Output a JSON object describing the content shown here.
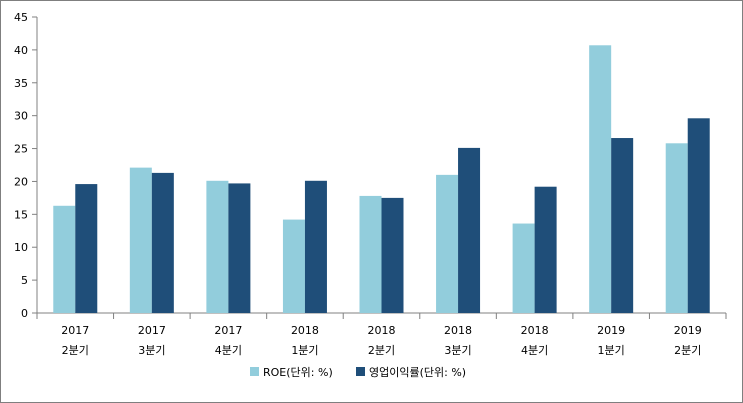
{
  "chart_data": {
    "type": "bar",
    "categories": [
      [
        "2017",
        "2분기"
      ],
      [
        "2017",
        "3분기"
      ],
      [
        "2017",
        "4분기"
      ],
      [
        "2018",
        "1분기"
      ],
      [
        "2018",
        "2분기"
      ],
      [
        "2018",
        "3분기"
      ],
      [
        "2018",
        "4분기"
      ],
      [
        "2019",
        "1분기"
      ],
      [
        "2019",
        "2분기"
      ]
    ],
    "series": [
      {
        "name": "ROE(단위: %)",
        "color": "#92cddc",
        "values": [
          16.3,
          22.1,
          20.1,
          14.2,
          17.8,
          21.0,
          13.6,
          40.7,
          25.8
        ]
      },
      {
        "name": "영업이익률(단위: %)",
        "color": "#1f4e79",
        "values": [
          19.6,
          21.3,
          19.7,
          20.1,
          17.5,
          25.1,
          19.2,
          26.6,
          29.6
        ]
      }
    ],
    "ylim": [
      0,
      45
    ],
    "yticks": [
      0,
      5,
      10,
      15,
      20,
      25,
      30,
      35,
      40,
      45
    ],
    "title": "",
    "xlabel": "",
    "ylabel": "",
    "grid": false,
    "legend_position": "bottom"
  }
}
